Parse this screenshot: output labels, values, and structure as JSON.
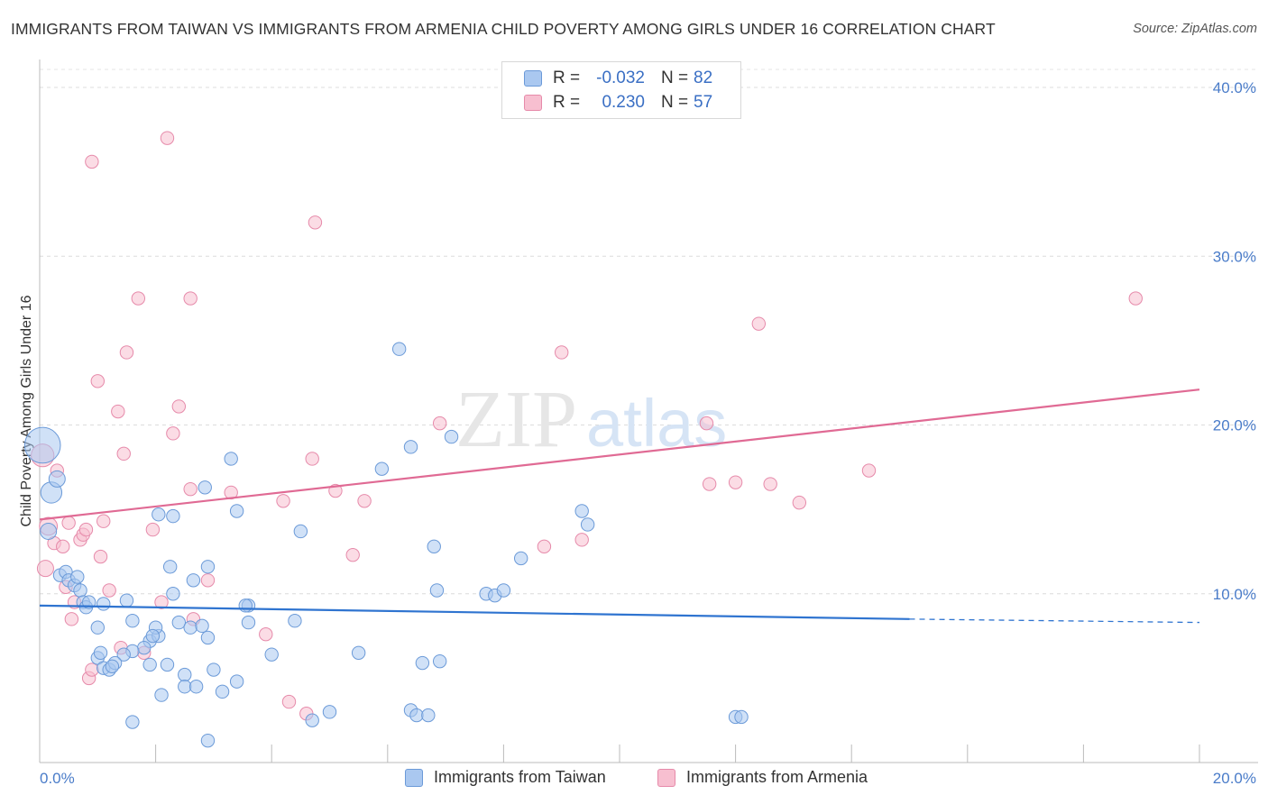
{
  "title": "IMMIGRANTS FROM TAIWAN VS IMMIGRANTS FROM ARMENIA CHILD POVERTY AMONG GIRLS UNDER 16 CORRELATION CHART",
  "source": "Source: ZipAtlas.com",
  "watermark": {
    "zip": "ZIP",
    "atlas": "atlas"
  },
  "legend": {
    "taiwan": {
      "r_label": "R =",
      "r_value": "-0.032",
      "n_label": "N =",
      "n_value": "82"
    },
    "armenia": {
      "r_label": "R =",
      "r_value": "0.230",
      "n_label": "N =",
      "n_value": "57"
    }
  },
  "chart_data": {
    "type": "scatter",
    "title": "IMMIGRANTS FROM TAIWAN VS IMMIGRANTS FROM ARMENIA CHILD POVERTY AMONG GIRLS UNDER 16 CORRELATION CHART",
    "xlabel": "",
    "ylabel": "Child Poverty Among Girls Under 16",
    "xlim": [
      0,
      20
    ],
    "ylim": [
      0,
      40
    ],
    "x_tick_labels": [
      "0.0%",
      "20.0%"
    ],
    "y_tick_labels": [
      "10.0%",
      "20.0%",
      "30.0%",
      "40.0%"
    ],
    "y_ticks": [
      10,
      20,
      30,
      40
    ],
    "grid": true,
    "legend_position": "top-center",
    "colors": {
      "taiwan_fill": "#aac8f0",
      "taiwan_stroke": "#6b9ad8",
      "taiwan_line": "#2f74d0",
      "armenia_fill": "#f7bfd0",
      "armenia_stroke": "#e68aaa",
      "armenia_line": "#e06a94",
      "axis_text": "#4a7cc9"
    },
    "series": [
      {
        "name": "Immigrants from Taiwan",
        "trend": {
          "x0": 0,
          "y0": 9.3,
          "x1": 15.0,
          "y1": 8.5,
          "x_dash_end": 20,
          "y_dash_end": 8.3
        },
        "points": [
          [
            0.05,
            18.8,
            2.2
          ],
          [
            0.2,
            16.0,
            1.3
          ],
          [
            0.3,
            16.8,
            1.0
          ],
          [
            0.15,
            13.7,
            1.0
          ],
          [
            0.35,
            11.1,
            0.8
          ],
          [
            0.45,
            11.3,
            0.8
          ],
          [
            0.5,
            10.8,
            0.8
          ],
          [
            0.6,
            10.5,
            0.8
          ],
          [
            0.65,
            11.0,
            0.8
          ],
          [
            0.7,
            10.2,
            0.8
          ],
          [
            0.75,
            9.5,
            0.8
          ],
          [
            0.8,
            9.2,
            0.8
          ],
          [
            0.85,
            9.5,
            0.8
          ],
          [
            1.1,
            9.4,
            0.8
          ],
          [
            1.0,
            8.0,
            0.8
          ],
          [
            1.5,
            9.6,
            0.8
          ],
          [
            1.9,
            7.2,
            0.8
          ],
          [
            2.05,
            7.5,
            0.8
          ],
          [
            2.0,
            8.0,
            0.8
          ],
          [
            1.8,
            6.8,
            0.8
          ],
          [
            1.6,
            6.6,
            0.8
          ],
          [
            1.45,
            6.4,
            0.8
          ],
          [
            1.0,
            6.2,
            0.8
          ],
          [
            1.05,
            6.5,
            0.8
          ],
          [
            1.1,
            5.6,
            0.8
          ],
          [
            1.2,
            5.5,
            0.8
          ],
          [
            1.3,
            5.9,
            0.8
          ],
          [
            1.25,
            5.7,
            0.8
          ],
          [
            1.6,
            8.4,
            0.8
          ],
          [
            1.9,
            5.8,
            0.8
          ],
          [
            2.2,
            5.8,
            0.8
          ],
          [
            2.1,
            4.0,
            0.8
          ],
          [
            1.6,
            2.4,
            0.8
          ],
          [
            2.3,
            10.0,
            0.8
          ],
          [
            2.25,
            11.6,
            0.8
          ],
          [
            2.05,
            14.7,
            0.8
          ],
          [
            2.3,
            14.6,
            0.8
          ],
          [
            2.65,
            10.8,
            0.8
          ],
          [
            2.9,
            11.6,
            0.8
          ],
          [
            2.4,
            8.3,
            0.8
          ],
          [
            2.6,
            8.0,
            0.8
          ],
          [
            2.8,
            8.1,
            0.8
          ],
          [
            2.9,
            7.4,
            0.8
          ],
          [
            2.5,
            5.2,
            0.8
          ],
          [
            2.5,
            4.5,
            0.8
          ],
          [
            2.7,
            4.5,
            0.8
          ],
          [
            3.0,
            5.5,
            0.8
          ],
          [
            3.15,
            4.2,
            0.8
          ],
          [
            3.4,
            4.8,
            0.8
          ],
          [
            2.9,
            1.3,
            0.8
          ],
          [
            3.3,
            18.0,
            0.8
          ],
          [
            2.85,
            16.3,
            0.8
          ],
          [
            3.4,
            14.9,
            0.8
          ],
          [
            3.6,
            9.3,
            0.8
          ],
          [
            3.6,
            8.3,
            0.8
          ],
          [
            4.4,
            8.4,
            0.8
          ],
          [
            4.0,
            6.4,
            0.8
          ],
          [
            4.5,
            13.7,
            0.8
          ],
          [
            4.7,
            2.5,
            0.8
          ],
          [
            5.0,
            3.0,
            0.8
          ],
          [
            5.5,
            6.5,
            0.8
          ],
          [
            5.9,
            17.4,
            0.8
          ],
          [
            6.2,
            24.5,
            0.8
          ],
          [
            6.4,
            18.7,
            0.8
          ],
          [
            6.4,
            3.1,
            0.8
          ],
          [
            6.5,
            2.8,
            0.8
          ],
          [
            6.7,
            2.8,
            0.8
          ],
          [
            6.6,
            5.9,
            0.8
          ],
          [
            6.9,
            6.0,
            0.8
          ],
          [
            6.8,
            12.8,
            0.8
          ],
          [
            6.85,
            10.2,
            0.8
          ],
          [
            7.1,
            19.3,
            0.8
          ],
          [
            7.7,
            10.0,
            0.8
          ],
          [
            7.85,
            9.9,
            0.8
          ],
          [
            8.0,
            10.2,
            0.8
          ],
          [
            8.3,
            12.1,
            0.8
          ],
          [
            9.35,
            14.9,
            0.8
          ],
          [
            9.45,
            14.1,
            0.8
          ],
          [
            12.0,
            2.7,
            0.8
          ],
          [
            12.1,
            2.7,
            0.8
          ],
          [
            3.55,
            9.3,
            0.8
          ],
          [
            1.95,
            7.5,
            0.8
          ]
        ]
      },
      {
        "name": "Immigrants from Armenia",
        "trend": {
          "x0": 0,
          "y0": 14.4,
          "x1": 20,
          "y1": 22.1
        },
        "points": [
          [
            0.05,
            18.2,
            1.4
          ],
          [
            0.15,
            14.0,
            1.1
          ],
          [
            0.1,
            11.5,
            1.0
          ],
          [
            0.25,
            13.0,
            0.8
          ],
          [
            0.3,
            17.3,
            0.8
          ],
          [
            0.4,
            12.8,
            0.8
          ],
          [
            0.45,
            10.4,
            0.8
          ],
          [
            0.5,
            14.2,
            0.8
          ],
          [
            0.55,
            8.5,
            0.8
          ],
          [
            0.6,
            9.5,
            0.8
          ],
          [
            0.7,
            13.2,
            0.8
          ],
          [
            0.75,
            13.5,
            0.8
          ],
          [
            0.8,
            13.8,
            0.8
          ],
          [
            0.85,
            5.0,
            0.8
          ],
          [
            0.9,
            5.5,
            0.8
          ],
          [
            0.9,
            35.6,
            0.8
          ],
          [
            1.0,
            22.6,
            0.8
          ],
          [
            1.05,
            12.2,
            0.8
          ],
          [
            1.1,
            14.3,
            0.8
          ],
          [
            1.2,
            10.2,
            0.8
          ],
          [
            1.35,
            20.8,
            0.8
          ],
          [
            1.4,
            6.8,
            0.8
          ],
          [
            1.45,
            18.3,
            0.8
          ],
          [
            1.5,
            24.3,
            0.8
          ],
          [
            1.7,
            27.5,
            0.8
          ],
          [
            1.8,
            6.5,
            0.8
          ],
          [
            1.95,
            13.8,
            0.8
          ],
          [
            2.1,
            9.5,
            0.8
          ],
          [
            2.2,
            37.0,
            0.8
          ],
          [
            2.3,
            19.5,
            0.8
          ],
          [
            2.4,
            21.1,
            0.8
          ],
          [
            2.6,
            16.2,
            0.8
          ],
          [
            2.6,
            27.5,
            0.8
          ],
          [
            2.65,
            8.5,
            0.8
          ],
          [
            2.9,
            10.8,
            0.8
          ],
          [
            3.3,
            16.0,
            0.8
          ],
          [
            3.9,
            7.6,
            0.8
          ],
          [
            4.2,
            15.5,
            0.8
          ],
          [
            4.3,
            3.6,
            0.8
          ],
          [
            4.6,
            2.9,
            0.8
          ],
          [
            4.7,
            18.0,
            0.8
          ],
          [
            4.75,
            32.0,
            0.8
          ],
          [
            5.1,
            16.1,
            0.8
          ],
          [
            5.4,
            12.3,
            0.8
          ],
          [
            5.6,
            15.5,
            0.8
          ],
          [
            6.9,
            20.1,
            0.8
          ],
          [
            8.7,
            12.8,
            0.8
          ],
          [
            9.0,
            24.3,
            0.8
          ],
          [
            9.35,
            13.2,
            0.8
          ],
          [
            11.5,
            20.1,
            0.8
          ],
          [
            11.55,
            16.5,
            0.8
          ],
          [
            12.0,
            16.6,
            0.8
          ],
          [
            12.4,
            26.0,
            0.8
          ],
          [
            12.6,
            16.5,
            0.8
          ],
          [
            13.1,
            15.4,
            0.8
          ],
          [
            14.3,
            17.3,
            0.8
          ],
          [
            18.9,
            27.5,
            0.8
          ]
        ]
      }
    ]
  },
  "bottom_legend": {
    "taiwan": "Immigrants from Taiwan",
    "armenia": "Immigrants from Armenia"
  }
}
